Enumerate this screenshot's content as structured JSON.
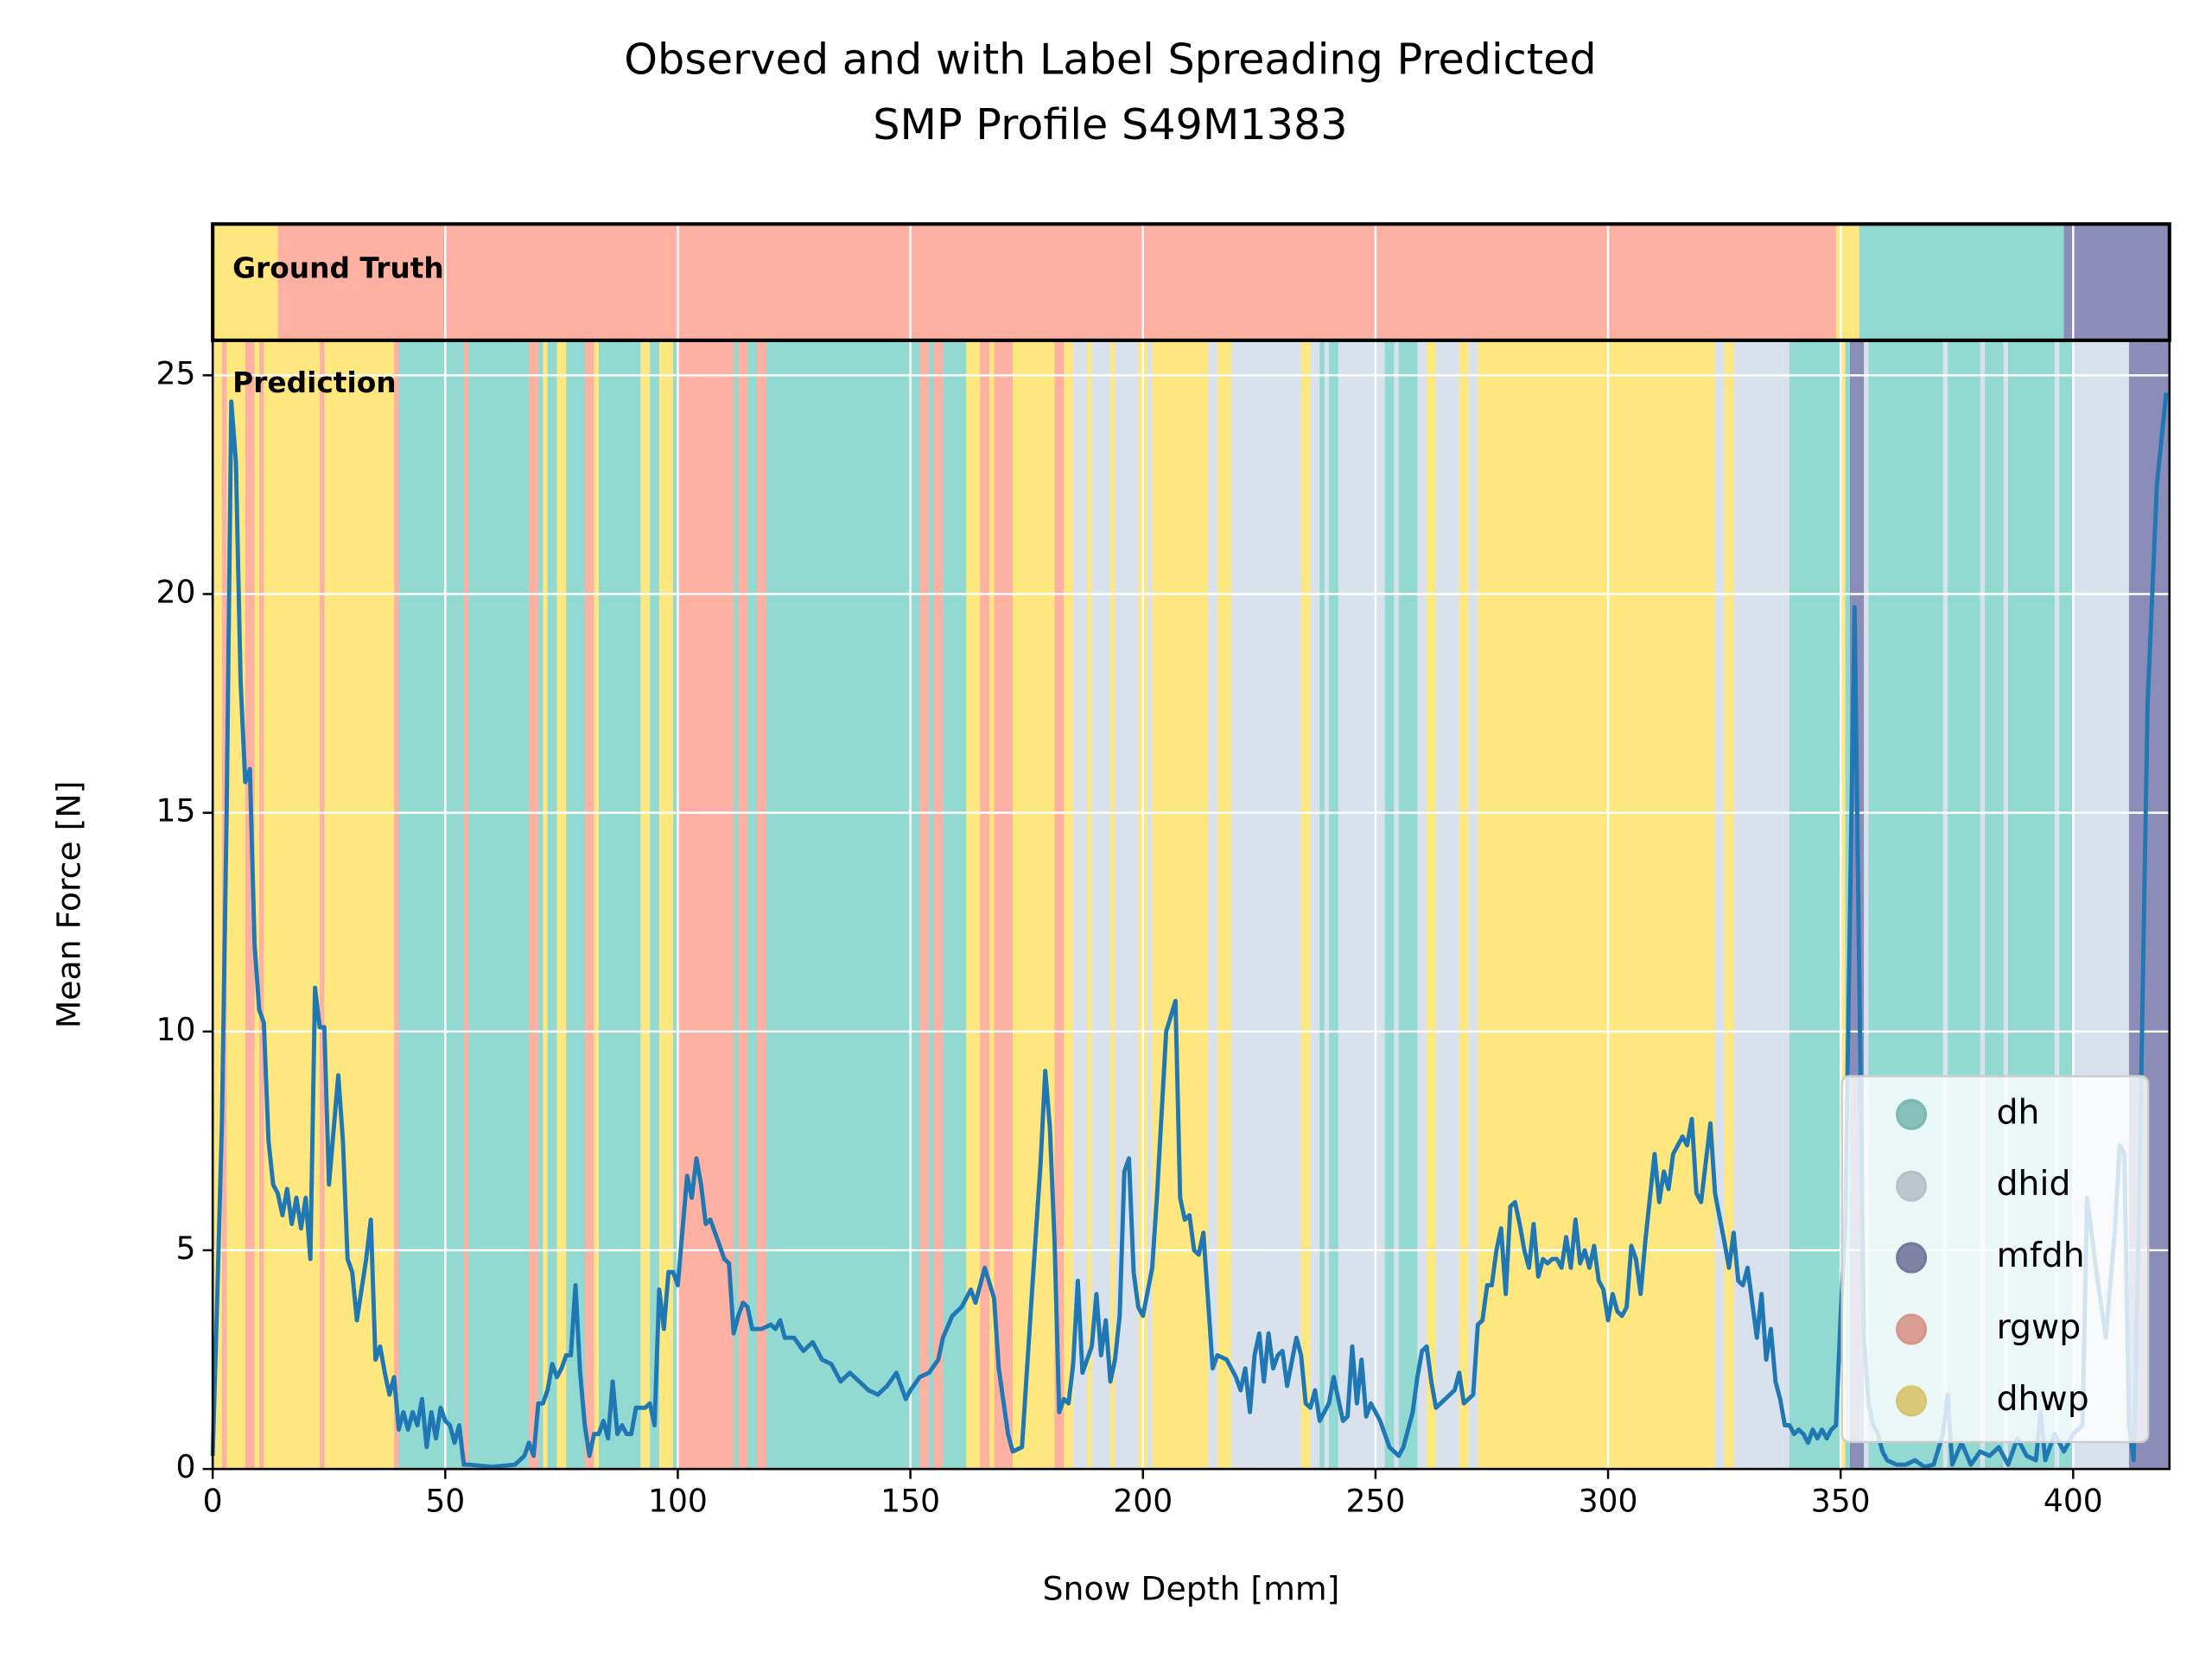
{
  "chart_data": {
    "type": "line",
    "title": "Observed and with Label Spreading Predicted",
    "subtitle": "SMP Profile S49M1383",
    "x_label": "Snow Depth [mm]",
    "y_label": "Mean Force [N]",
    "strip_label": "Ground Truth",
    "panel_label": "Prediction",
    "xlim": [
      0,
      420.7
    ],
    "ylim": [
      0,
      25.8
    ],
    "xticks": [
      0,
      50,
      100,
      150,
      200,
      250,
      300,
      350,
      400
    ],
    "yticks": [
      0,
      5,
      10,
      15,
      20,
      25
    ],
    "grid": true,
    "legend_position": "lower right",
    "color": "#1f77b4",
    "classes": [
      {
        "name": "dh",
        "color": "#92d9d2"
      },
      {
        "name": "dhid",
        "color": "#d8e1ec"
      },
      {
        "name": "mfdh",
        "color": "#8b8cb8"
      },
      {
        "name": "rgwp",
        "color": "#feb0a2"
      },
      {
        "name": "dhwp",
        "color": "#fee77e"
      }
    ],
    "ground_truth": [
      {
        "start": 0,
        "end": 14,
        "class": "dhwp"
      },
      {
        "start": 14,
        "end": 349,
        "class": "rgwp"
      },
      {
        "start": 349,
        "end": 354,
        "class": "dhwp"
      },
      {
        "start": 354,
        "end": 398,
        "class": "dh"
      },
      {
        "start": 398,
        "end": 420.7,
        "class": "mfdh"
      }
    ],
    "prediction": [
      {
        "start": 0,
        "end": 2,
        "class": "dhwp"
      },
      {
        "start": 2,
        "end": 3,
        "class": "rgwp"
      },
      {
        "start": 3,
        "end": 7,
        "class": "dhwp"
      },
      {
        "start": 7,
        "end": 9,
        "class": "rgwp"
      },
      {
        "start": 9,
        "end": 10,
        "class": "dhwp"
      },
      {
        "start": 10,
        "end": 11,
        "class": "rgwp"
      },
      {
        "start": 11,
        "end": 23,
        "class": "dhwp"
      },
      {
        "start": 23,
        "end": 24,
        "class": "rgwp"
      },
      {
        "start": 24,
        "end": 39,
        "class": "dhwp"
      },
      {
        "start": 39,
        "end": 40,
        "class": "rgwp"
      },
      {
        "start": 40,
        "end": 54,
        "class": "dh"
      },
      {
        "start": 54,
        "end": 55,
        "class": "rgwp"
      },
      {
        "start": 55,
        "end": 68,
        "class": "dh"
      },
      {
        "start": 68,
        "end": 70,
        "class": "rgwp"
      },
      {
        "start": 70,
        "end": 71,
        "class": "dh"
      },
      {
        "start": 71,
        "end": 72,
        "class": "dhwp"
      },
      {
        "start": 72,
        "end": 74,
        "class": "dh"
      },
      {
        "start": 74,
        "end": 76,
        "class": "dhwp"
      },
      {
        "start": 76,
        "end": 80,
        "class": "dh"
      },
      {
        "start": 80,
        "end": 82,
        "class": "rgwp"
      },
      {
        "start": 82,
        "end": 83,
        "class": "dhwp"
      },
      {
        "start": 83,
        "end": 92,
        "class": "dh"
      },
      {
        "start": 92,
        "end": 94,
        "class": "dhwp"
      },
      {
        "start": 94,
        "end": 96,
        "class": "dh"
      },
      {
        "start": 96,
        "end": 99,
        "class": "dhwp"
      },
      {
        "start": 99,
        "end": 100,
        "class": "dh"
      },
      {
        "start": 100,
        "end": 112,
        "class": "rgwp"
      },
      {
        "start": 112,
        "end": 113,
        "class": "dh"
      },
      {
        "start": 113,
        "end": 115,
        "class": "rgwp"
      },
      {
        "start": 115,
        "end": 117,
        "class": "dh"
      },
      {
        "start": 117,
        "end": 119,
        "class": "rgwp"
      },
      {
        "start": 119,
        "end": 152,
        "class": "dh"
      },
      {
        "start": 152,
        "end": 154,
        "class": "rgwp"
      },
      {
        "start": 154,
        "end": 155,
        "class": "dh"
      },
      {
        "start": 155,
        "end": 157,
        "class": "rgwp"
      },
      {
        "start": 157,
        "end": 162,
        "class": "dh"
      },
      {
        "start": 162,
        "end": 165,
        "class": "dhwp"
      },
      {
        "start": 165,
        "end": 167,
        "class": "rgwp"
      },
      {
        "start": 167,
        "end": 168,
        "class": "dhwp"
      },
      {
        "start": 168,
        "end": 172,
        "class": "rgwp"
      },
      {
        "start": 172,
        "end": 181,
        "class": "dhwp"
      },
      {
        "start": 181,
        "end": 183,
        "class": "rgwp"
      },
      {
        "start": 183,
        "end": 185,
        "class": "dhwp"
      },
      {
        "start": 185,
        "end": 188,
        "class": "dhid"
      },
      {
        "start": 188,
        "end": 189,
        "class": "dhwp"
      },
      {
        "start": 189,
        "end": 193,
        "class": "dhid"
      },
      {
        "start": 193,
        "end": 194,
        "class": "dhwp"
      },
      {
        "start": 194,
        "end": 199,
        "class": "dhid"
      },
      {
        "start": 199,
        "end": 201,
        "class": "dhwp"
      },
      {
        "start": 201,
        "end": 202,
        "class": "dhid"
      },
      {
        "start": 202,
        "end": 214,
        "class": "dhwp"
      },
      {
        "start": 214,
        "end": 216,
        "class": "dhid"
      },
      {
        "start": 216,
        "end": 219,
        "class": "dhwp"
      },
      {
        "start": 219,
        "end": 234,
        "class": "dhid"
      },
      {
        "start": 234,
        "end": 236,
        "class": "dhwp"
      },
      {
        "start": 236,
        "end": 238,
        "class": "dhid"
      },
      {
        "start": 238,
        "end": 239,
        "class": "dh"
      },
      {
        "start": 239,
        "end": 240,
        "class": "dhid"
      },
      {
        "start": 240,
        "end": 242,
        "class": "dh"
      },
      {
        "start": 242,
        "end": 252,
        "class": "dhid"
      },
      {
        "start": 252,
        "end": 254,
        "class": "dh"
      },
      {
        "start": 254,
        "end": 255,
        "class": "dhid"
      },
      {
        "start": 255,
        "end": 259,
        "class": "dh"
      },
      {
        "start": 259,
        "end": 261,
        "class": "dhid"
      },
      {
        "start": 261,
        "end": 263,
        "class": "dhwp"
      },
      {
        "start": 263,
        "end": 268,
        "class": "dhid"
      },
      {
        "start": 268,
        "end": 270,
        "class": "dhwp"
      },
      {
        "start": 270,
        "end": 272,
        "class": "dhid"
      },
      {
        "start": 272,
        "end": 323,
        "class": "dhwp"
      },
      {
        "start": 323,
        "end": 325,
        "class": "dhid"
      },
      {
        "start": 325,
        "end": 327,
        "class": "dhwp"
      },
      {
        "start": 327,
        "end": 339,
        "class": "dhid"
      },
      {
        "start": 339,
        "end": 350,
        "class": "dh"
      },
      {
        "start": 350,
        "end": 351,
        "class": "dhwp"
      },
      {
        "start": 351,
        "end": 352,
        "class": "dh"
      },
      {
        "start": 352,
        "end": 355,
        "class": "mfdh"
      },
      {
        "start": 355,
        "end": 356,
        "class": "dhid"
      },
      {
        "start": 356,
        "end": 372,
        "class": "dh"
      },
      {
        "start": 372,
        "end": 373,
        "class": "dhid"
      },
      {
        "start": 373,
        "end": 380,
        "class": "dh"
      },
      {
        "start": 380,
        "end": 381,
        "class": "dhid"
      },
      {
        "start": 381,
        "end": 385,
        "class": "dh"
      },
      {
        "start": 385,
        "end": 386,
        "class": "dhid"
      },
      {
        "start": 386,
        "end": 396,
        "class": "dh"
      },
      {
        "start": 396,
        "end": 397,
        "class": "dhid"
      },
      {
        "start": 397,
        "end": 400,
        "class": "dh"
      },
      {
        "start": 400,
        "end": 412,
        "class": "dhid"
      },
      {
        "start": 412,
        "end": 420.7,
        "class": "mfdh"
      }
    ],
    "x": [
      0,
      1,
      2,
      3,
      4,
      5,
      6,
      7,
      8,
      9,
      10,
      11,
      12,
      13,
      14,
      15,
      16,
      17,
      18,
      19,
      20,
      21,
      22,
      23,
      24,
      25,
      27,
      28,
      29,
      30,
      31,
      33,
      34,
      35,
      36,
      37,
      38,
      39,
      40,
      41,
      42,
      43,
      44,
      45,
      46,
      47,
      48,
      49,
      50,
      51,
      52,
      53,
      54,
      55,
      60,
      65,
      67,
      68,
      69,
      70,
      71,
      72,
      73,
      74,
      75,
      76,
      77,
      78,
      79,
      80,
      81,
      82,
      83,
      84,
      85,
      86,
      87,
      88,
      89,
      90,
      91,
      93,
      94,
      95,
      96,
      97,
      98,
      99,
      100,
      102,
      103,
      104,
      105,
      106,
      107,
      108,
      110,
      111,
      112,
      113,
      114,
      115,
      116,
      118,
      120,
      121,
      122,
      123,
      125,
      127,
      129,
      131,
      133,
      135,
      137,
      139,
      141,
      143,
      145,
      147,
      149,
      150,
      152,
      154,
      156,
      157,
      159,
      161,
      163,
      164,
      166,
      168,
      169,
      171,
      172,
      174,
      176,
      178,
      179,
      180,
      181,
      182,
      183,
      184,
      185,
      186,
      187,
      189,
      190,
      191,
      192,
      193,
      194,
      195,
      196,
      197,
      198,
      199,
      200,
      202,
      203,
      205,
      207,
      208,
      209,
      210,
      211,
      212,
      213,
      215,
      216,
      218,
      220,
      221,
      222,
      223,
      224,
      225,
      226,
      227,
      228,
      229,
      230,
      231,
      233,
      234,
      235,
      236,
      237,
      238,
      240,
      241,
      242,
      243,
      244,
      245,
      246,
      247,
      248,
      249,
      251,
      252,
      253,
      255,
      256,
      258,
      259,
      260,
      261,
      262,
      263,
      265,
      267,
      268,
      269,
      270,
      271,
      272,
      273,
      274,
      275,
      276,
      277,
      278,
      279,
      280,
      281,
      282,
      283,
      284,
      285,
      286,
      287,
      288,
      289,
      290,
      291,
      292,
      293,
      294,
      295,
      296,
      297,
      298,
      299,
      300,
      301,
      302,
      303,
      304,
      305,
      306,
      307,
      308,
      310,
      311,
      312,
      313,
      314,
      316,
      317,
      318,
      319,
      320,
      322,
      323,
      325,
      326,
      327,
      328,
      329,
      330,
      332,
      333,
      334,
      335,
      336,
      337,
      338,
      339,
      340,
      341,
      342,
      343,
      344,
      345,
      346,
      347,
      348,
      349,
      350,
      351,
      353,
      355,
      356,
      357,
      358,
      359,
      360,
      362,
      364,
      366,
      368,
      370,
      372,
      373,
      374,
      376,
      378,
      380,
      382,
      384,
      386,
      388,
      390,
      392,
      393,
      394,
      396,
      398,
      400,
      402,
      403,
      405,
      407,
      409,
      410,
      411,
      412,
      413,
      414,
      416,
      418,
      420
    ],
    "values": [
      0.3,
      4,
      8,
      15,
      24.4,
      23,
      18,
      15.7,
      16,
      12,
      10.5,
      10.2,
      7.5,
      6.5,
      6.3,
      5.8,
      6.4,
      5.6,
      6.2,
      5.5,
      6.2,
      4.8,
      11,
      10.1,
      10.1,
      6.5,
      9,
      7.5,
      4.8,
      4.5,
      3.4,
      4.8,
      5.7,
      2.5,
      2.8,
      2.2,
      1.7,
      2.1,
      0.9,
      1.3,
      0.9,
      1.3,
      1.0,
      1.6,
      0.5,
      1.3,
      0.7,
      1.4,
      1.1,
      1.0,
      0.6,
      1.0,
      0.1,
      0.1,
      0.05,
      0.1,
      0.3,
      0.6,
      0.3,
      1.5,
      1.5,
      1.8,
      2.4,
      2.1,
      2.3,
      2.6,
      2.6,
      4.2,
      2.2,
      1.0,
      0.3,
      0.8,
      0.8,
      1.1,
      0.7,
      2.0,
      0.8,
      1.0,
      0.8,
      0.8,
      1.4,
      1.4,
      1.5,
      1.0,
      4.1,
      3.2,
      4.5,
      4.5,
      4.2,
      6.7,
      6.2,
      7.1,
      6.5,
      5.6,
      5.7,
      5.4,
      4.8,
      4.7,
      3.1,
      3.5,
      3.8,
      3.7,
      3.2,
      3.2,
      3.3,
      3.2,
      3.4,
      3.0,
      3.0,
      2.7,
      2.9,
      2.5,
      2.4,
      2.0,
      2.2,
      2.0,
      1.8,
      1.7,
      1.9,
      2.2,
      1.6,
      1.8,
      2.1,
      2.2,
      2.5,
      3.0,
      3.5,
      3.7,
      4.1,
      3.8,
      4.6,
      3.9,
      2.3,
      0.8,
      0.4,
      0.5,
      3.8,
      7.0,
      9.1,
      7.8,
      5.2,
      1.3,
      1.6,
      1.5,
      2.4,
      4.3,
      2.2,
      2.8,
      4.0,
      2.6,
      3.4,
      2.0,
      2.5,
      3.5,
      6.8,
      7.1,
      4.5,
      3.7,
      3.5,
      4.6,
      6.2,
      10.0,
      10.7,
      6.2,
      5.7,
      5.8,
      5.0,
      4.9,
      5.4,
      2.3,
      2.6,
      2.5,
      2.1,
      1.8,
      2.3,
      1.3,
      2.6,
      3.1,
      2.0,
      3.1,
      2.3,
      2.6,
      2.7,
      1.9,
      3.0,
      2.6,
      1.5,
      1.4,
      1.8,
      1.1,
      1.5,
      2.1,
      1.6,
      1.1,
      1.2,
      2.8,
      1.5,
      2.5,
      1.2,
      1.5,
      1.1,
      0.8,
      0.5,
      0.3,
      0.5,
      1.3,
      2.1,
      2.7,
      2.8,
      2.0,
      1.4,
      1.6,
      1.8,
      2.2,
      1.5,
      1.6,
      1.7,
      3.3,
      3.4,
      4.2,
      4.2,
      5.0,
      5.5,
      4.0,
      6.0,
      6.1,
      5.6,
      5.0,
      4.6,
      5.6,
      4.4,
      4.8,
      4.7,
      4.8,
      4.8,
      4.6,
      5.3,
      4.6,
      5.7,
      4.7,
      5.0,
      4.6,
      5.1,
      4.3,
      4.1,
      3.4,
      4.0,
      3.6,
      3.5,
      3.7,
      5.1,
      4.8,
      4.0,
      5.2,
      7.2,
      6.1,
      6.8,
      6.4,
      7.2,
      7.6,
      7.4,
      8.0,
      6.3,
      6.1,
      7.9,
      6.3,
      5.2,
      4.6,
      5.4,
      4.3,
      4.2,
      4.6,
      3.0,
      4.0,
      2.5,
      3.2,
      2.0,
      1.6,
      1.0,
      1.0,
      0.8,
      0.9,
      0.8,
      0.6,
      0.9,
      0.7,
      0.9,
      0.7,
      0.9,
      1.0,
      3.5,
      5.6,
      19.7,
      3.0,
      1.5,
      1.0,
      0.8,
      0.4,
      0.2,
      0.1,
      0.1,
      0.2,
      0.05,
      0.1,
      0.8,
      1.7,
      0.1,
      0.6,
      0.1,
      0.4,
      0.3,
      0.5,
      0.1,
      0.7,
      0.3,
      0.2,
      1.3,
      0.2,
      0.8,
      0.4,
      0.8,
      1.0,
      6.2,
      4.5,
      3.0,
      5.5,
      7.4,
      7.2,
      1.0,
      0.2,
      5.0,
      17.5,
      22.5,
      24.6
    ]
  }
}
